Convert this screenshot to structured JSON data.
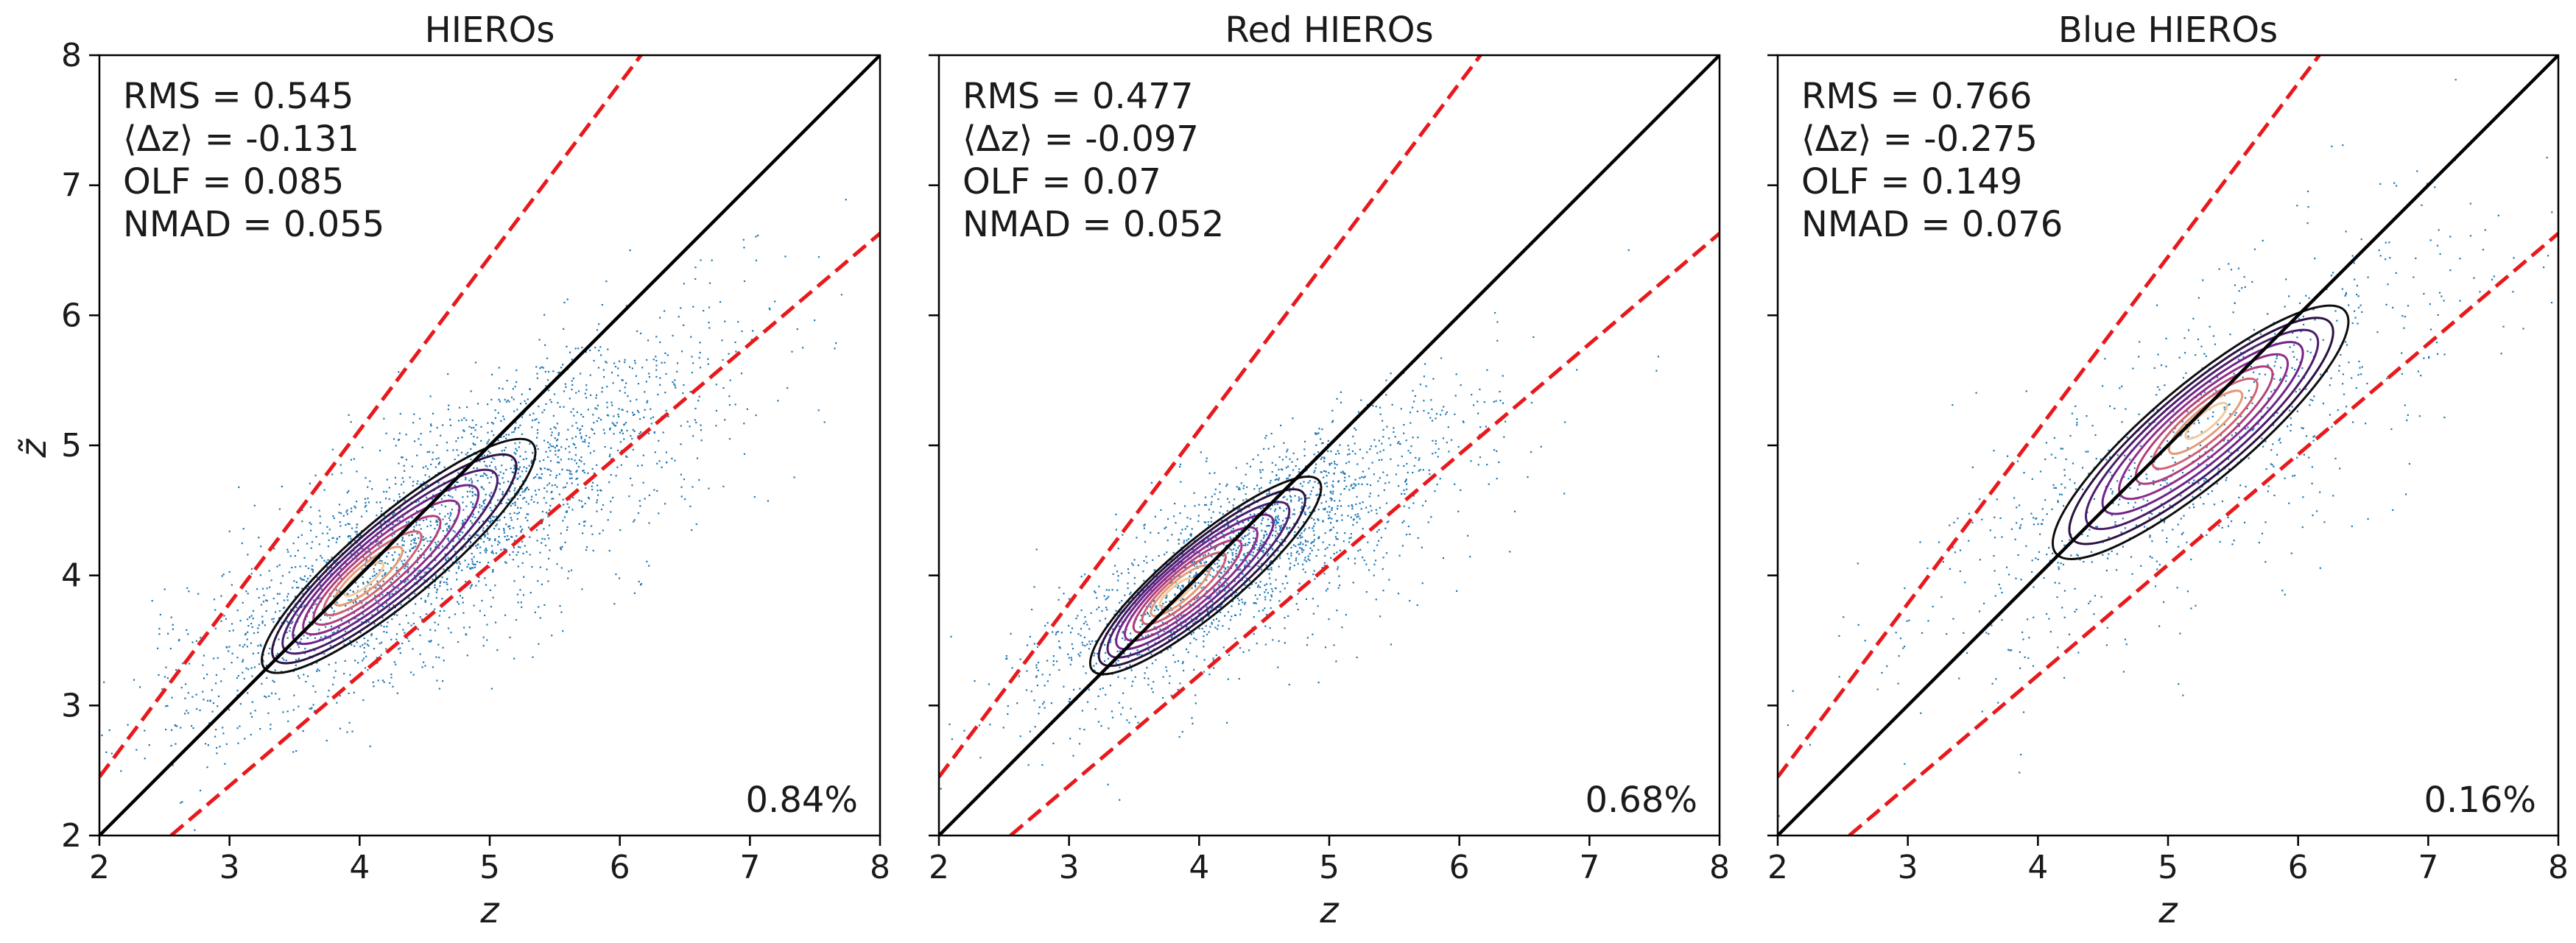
{
  "chart_data": [
    {
      "type": "scatter",
      "title": "HIEROs",
      "xlabel": "z",
      "ylabel": "z̃",
      "xlim": [
        2,
        8
      ],
      "ylim": [
        2,
        8
      ],
      "xticks": [
        "2",
        "3",
        "4",
        "5",
        "6",
        "7",
        "8"
      ],
      "yticks": [
        "2",
        "3",
        "4",
        "5",
        "6",
        "7",
        "8"
      ],
      "show_y_ticklabels": true,
      "stats": [
        "RMS = 0.545",
        "⟨Δz⟩ = -0.131",
        "OLF = 0.085",
        "NMAD = 0.055"
      ],
      "corner_label": "0.84%",
      "one_to_one_line": {
        "x": [
          2,
          8
        ],
        "y": [
          2,
          8
        ]
      },
      "outlier_bounds": [
        {
          "x": [
            2,
            8
          ],
          "y": [
            2.45,
            10.45
          ]
        },
        {
          "x": [
            2.55,
            8
          ],
          "y": [
            2,
            6.63
          ]
        }
      ],
      "density_peak": {
        "x": 4.0,
        "y": 3.95
      },
      "scatter_cloud": {
        "x_center": 4.6,
        "y_center": 4.35,
        "x_spread": 1.0,
        "y_spread": 0.75,
        "correlation": 0.82,
        "n_points": 2600
      }
    },
    {
      "type": "scatter",
      "title": "Red HIEROs",
      "xlabel": "z",
      "ylabel": "",
      "xlim": [
        2,
        8
      ],
      "ylim": [
        2,
        8
      ],
      "xticks": [
        "2",
        "3",
        "4",
        "5",
        "6",
        "7",
        "8"
      ],
      "yticks": [
        "2",
        "3",
        "4",
        "5",
        "6",
        "7",
        "8"
      ],
      "show_y_ticklabels": false,
      "stats": [
        "RMS = 0.477",
        "⟨Δz⟩ = -0.097",
        "OLF = 0.07",
        "NMAD = 0.052"
      ],
      "corner_label": "0.68%",
      "one_to_one_line": {
        "x": [
          2,
          8
        ],
        "y": [
          2,
          8
        ]
      },
      "outlier_bounds": [
        {
          "x": [
            2,
            8
          ],
          "y": [
            2.45,
            10.45
          ]
        },
        {
          "x": [
            2.55,
            8
          ],
          "y": [
            2,
            6.63
          ]
        }
      ],
      "density_peak": {
        "x": 3.8,
        "y": 3.85
      },
      "scatter_cloud": {
        "x_center": 4.3,
        "y_center": 4.15,
        "x_spread": 0.8,
        "y_spread": 0.6,
        "correlation": 0.85,
        "n_points": 2000
      }
    },
    {
      "type": "scatter",
      "title": "Blue HIEROs",
      "xlabel": "z",
      "ylabel": "",
      "xlim": [
        2,
        8
      ],
      "ylim": [
        2,
        8
      ],
      "xticks": [
        "2",
        "3",
        "4",
        "5",
        "6",
        "7",
        "8"
      ],
      "yticks": [
        "2",
        "3",
        "4",
        "5",
        "6",
        "7",
        "8"
      ],
      "show_y_ticklabels": false,
      "stats": [
        "RMS = 0.766",
        "⟨Δz⟩ = -0.275",
        "OLF = 0.149",
        "NMAD = 0.076"
      ],
      "corner_label": "0.16%",
      "one_to_one_line": {
        "x": [
          2,
          8
        ],
        "y": [
          2,
          8
        ]
      },
      "outlier_bounds": [
        {
          "x": [
            2,
            8
          ],
          "y": [
            2.45,
            10.45
          ]
        },
        {
          "x": [
            2.55,
            8
          ],
          "y": [
            2,
            6.63
          ]
        }
      ],
      "density_peak": {
        "x": 5.3,
        "y": 5.2
      },
      "scatter_cloud": {
        "x_center": 5.2,
        "y_center": 5.0,
        "x_spread": 1.1,
        "y_spread": 0.9,
        "correlation": 0.8,
        "n_points": 900
      }
    }
  ],
  "colors": {
    "scatter": "#1f77b4",
    "one_to_one": "#000000",
    "outlier_bounds": "#e8191c",
    "contours": [
      "#0d0d0d",
      "#2b1140",
      "#4a1d6b",
      "#6e2488",
      "#8e2d8a",
      "#b13f7c",
      "#cf6273",
      "#e39a78",
      "#f1c9a0"
    ]
  }
}
